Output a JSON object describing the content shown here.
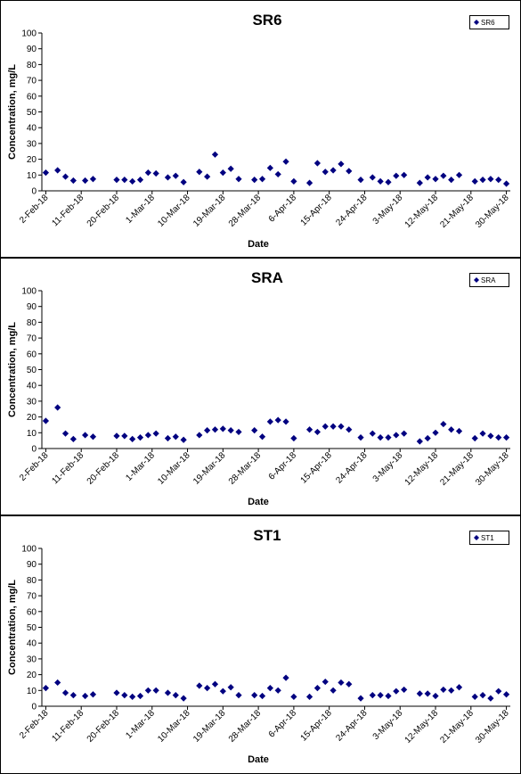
{
  "chart_data": [
    {
      "type": "scatter",
      "title": "SR6",
      "xlabel": "Date",
      "ylabel": "Concentration, mg/L",
      "x": [
        "2018-02-02",
        "2018-02-05",
        "2018-02-07",
        "2018-02-09",
        "2018-02-12",
        "2018-02-14",
        "2018-02-20",
        "2018-02-22",
        "2018-02-24",
        "2018-02-26",
        "2018-02-28",
        "2018-03-02",
        "2018-03-05",
        "2018-03-07",
        "2018-03-09",
        "2018-03-13",
        "2018-03-15",
        "2018-03-17",
        "2018-03-19",
        "2018-03-21",
        "2018-03-23",
        "2018-03-27",
        "2018-03-29",
        "2018-03-31",
        "2018-04-02",
        "2018-04-04",
        "2018-04-06",
        "2018-04-10",
        "2018-04-12",
        "2018-04-14",
        "2018-04-16",
        "2018-04-18",
        "2018-04-20",
        "2018-04-23",
        "2018-04-26",
        "2018-04-28",
        "2018-04-30",
        "2018-05-02",
        "2018-05-04",
        "2018-05-08",
        "2018-05-10",
        "2018-05-12",
        "2018-05-14",
        "2018-05-16",
        "2018-05-18",
        "2018-05-22",
        "2018-05-24",
        "2018-05-26",
        "2018-05-28",
        "2018-05-30"
      ],
      "series": [
        {
          "name": "SR6",
          "color": "#000080",
          "values": [
            11.5,
            13,
            9,
            6.5,
            6.5,
            7.5,
            7,
            7,
            6,
            7,
            11.5,
            11,
            8.5,
            9.5,
            5.5,
            12,
            9,
            23,
            11.5,
            14,
            7.5,
            7,
            7.5,
            14.5,
            10.5,
            18.5,
            6,
            5,
            17.5,
            12,
            13,
            17,
            12.5,
            7,
            8.5,
            6,
            5.5,
            9.5,
            10,
            5,
            8.5,
            7.5,
            9.5,
            7,
            10,
            6,
            7,
            7.5,
            7,
            4.5
          ]
        }
      ],
      "xlim": [
        "2018-02-01",
        "2018-05-31"
      ],
      "xticks": [
        {
          "value": "2018-02-02",
          "label": "2-Feb-18"
        },
        {
          "value": "2018-02-11",
          "label": "11-Feb-18"
        },
        {
          "value": "2018-02-20",
          "label": "20-Feb-18"
        },
        {
          "value": "2018-03-01",
          "label": "1-Mar-18"
        },
        {
          "value": "2018-03-10",
          "label": "10-Mar-18"
        },
        {
          "value": "2018-03-19",
          "label": "19-Mar-18"
        },
        {
          "value": "2018-03-28",
          "label": "28-Mar-18"
        },
        {
          "value": "2018-04-06",
          "label": "6-Apr-18"
        },
        {
          "value": "2018-04-15",
          "label": "15-Apr-18"
        },
        {
          "value": "2018-04-24",
          "label": "24-Apr-18"
        },
        {
          "value": "2018-05-03",
          "label": "3-May-18"
        },
        {
          "value": "2018-05-12",
          "label": "12-May-18"
        },
        {
          "value": "2018-05-21",
          "label": "21-May-18"
        },
        {
          "value": "2018-05-30",
          "label": "30-May-18"
        }
      ],
      "ylim": [
        0,
        100
      ],
      "yticks": [
        0,
        10,
        20,
        30,
        40,
        50,
        60,
        70,
        80,
        90,
        100
      ],
      "legend": "upper right"
    },
    {
      "type": "scatter",
      "title": "SRA",
      "xlabel": "Date",
      "ylabel": "Concentration, mg/L",
      "x": [
        "2018-02-02",
        "2018-02-05",
        "2018-02-07",
        "2018-02-09",
        "2018-02-12",
        "2018-02-14",
        "2018-02-20",
        "2018-02-22",
        "2018-02-24",
        "2018-02-26",
        "2018-02-28",
        "2018-03-02",
        "2018-03-05",
        "2018-03-07",
        "2018-03-09",
        "2018-03-13",
        "2018-03-15",
        "2018-03-17",
        "2018-03-19",
        "2018-03-21",
        "2018-03-23",
        "2018-03-27",
        "2018-03-29",
        "2018-03-31",
        "2018-04-02",
        "2018-04-04",
        "2018-04-06",
        "2018-04-10",
        "2018-04-12",
        "2018-04-14",
        "2018-04-16",
        "2018-04-18",
        "2018-04-20",
        "2018-04-23",
        "2018-04-26",
        "2018-04-28",
        "2018-04-30",
        "2018-05-02",
        "2018-05-04",
        "2018-05-08",
        "2018-05-10",
        "2018-05-12",
        "2018-05-14",
        "2018-05-16",
        "2018-05-18",
        "2018-05-22",
        "2018-05-24",
        "2018-05-26",
        "2018-05-28",
        "2018-05-30"
      ],
      "series": [
        {
          "name": "SRA",
          "color": "#000080",
          "values": [
            17.5,
            26,
            9.5,
            6,
            8.5,
            7.5,
            8,
            8,
            6,
            7,
            8.5,
            9.5,
            6.5,
            7.5,
            5.5,
            8.5,
            11.5,
            12,
            12.5,
            11.5,
            10.5,
            11.5,
            7.5,
            17,
            18,
            17,
            6.5,
            12,
            10.5,
            14,
            14,
            14,
            12,
            7,
            9.5,
            7,
            7,
            8.5,
            9.5,
            4.5,
            6.5,
            10,
            15.5,
            12,
            11,
            6.5,
            9.5,
            8,
            7,
            7
          ]
        }
      ],
      "xlim": [
        "2018-02-01",
        "2018-05-31"
      ],
      "xticks": [
        {
          "value": "2018-02-02",
          "label": "2-Feb-18"
        },
        {
          "value": "2018-02-11",
          "label": "11-Feb-18"
        },
        {
          "value": "2018-02-20",
          "label": "20-Feb-18"
        },
        {
          "value": "2018-03-01",
          "label": "1-Mar-18"
        },
        {
          "value": "2018-03-10",
          "label": "10-Mar-18"
        },
        {
          "value": "2018-03-19",
          "label": "19-Mar-18"
        },
        {
          "value": "2018-03-28",
          "label": "28-Mar-18"
        },
        {
          "value": "2018-04-06",
          "label": "6-Apr-18"
        },
        {
          "value": "2018-04-15",
          "label": "15-Apr-18"
        },
        {
          "value": "2018-04-24",
          "label": "24-Apr-18"
        },
        {
          "value": "2018-05-03",
          "label": "3-May-18"
        },
        {
          "value": "2018-05-12",
          "label": "12-May-18"
        },
        {
          "value": "2018-05-21",
          "label": "21-May-18"
        },
        {
          "value": "2018-05-30",
          "label": "30-May-18"
        }
      ],
      "ylim": [
        0,
        100
      ],
      "yticks": [
        0,
        10,
        20,
        30,
        40,
        50,
        60,
        70,
        80,
        90,
        100
      ],
      "legend": "upper right"
    },
    {
      "type": "scatter",
      "title": "ST1",
      "xlabel": "Date",
      "ylabel": "Concentration, mg/L",
      "x": [
        "2018-02-02",
        "2018-02-05",
        "2018-02-07",
        "2018-02-09",
        "2018-02-12",
        "2018-02-14",
        "2018-02-20",
        "2018-02-22",
        "2018-02-24",
        "2018-02-26",
        "2018-02-28",
        "2018-03-02",
        "2018-03-05",
        "2018-03-07",
        "2018-03-09",
        "2018-03-13",
        "2018-03-15",
        "2018-03-17",
        "2018-03-19",
        "2018-03-21",
        "2018-03-23",
        "2018-03-27",
        "2018-03-29",
        "2018-03-31",
        "2018-04-02",
        "2018-04-04",
        "2018-04-06",
        "2018-04-10",
        "2018-04-12",
        "2018-04-14",
        "2018-04-16",
        "2018-04-18",
        "2018-04-20",
        "2018-04-23",
        "2018-04-26",
        "2018-04-28",
        "2018-04-30",
        "2018-05-02",
        "2018-05-04",
        "2018-05-08",
        "2018-05-10",
        "2018-05-12",
        "2018-05-14",
        "2018-05-16",
        "2018-05-18",
        "2018-05-22",
        "2018-05-24",
        "2018-05-26",
        "2018-05-28",
        "2018-05-30"
      ],
      "series": [
        {
          "name": "ST1",
          "color": "#000080",
          "values": [
            11.5,
            15,
            8.5,
            7,
            6.5,
            7.5,
            8.5,
            7,
            6,
            6.5,
            10,
            10,
            8.5,
            7,
            5,
            13,
            11.5,
            14,
            9.5,
            12,
            7,
            7,
            6.5,
            11.5,
            10,
            18,
            6,
            6,
            11.5,
            15.5,
            10,
            15,
            14,
            5,
            7,
            7,
            6.5,
            9.5,
            10.5,
            8,
            8,
            6.5,
            10.5,
            10,
            12,
            6,
            7,
            5,
            9.5,
            7.5
          ]
        }
      ],
      "xlim": [
        "2018-02-01",
        "2018-05-31"
      ],
      "xticks": [
        {
          "value": "2018-02-02",
          "label": "2-Feb-18"
        },
        {
          "value": "2018-02-11",
          "label": "11-Feb-18"
        },
        {
          "value": "2018-02-20",
          "label": "20-Feb-18"
        },
        {
          "value": "2018-03-01",
          "label": "1-Mar-18"
        },
        {
          "value": "2018-03-10",
          "label": "10-Mar-18"
        },
        {
          "value": "2018-03-19",
          "label": "19-Mar-18"
        },
        {
          "value": "2018-03-28",
          "label": "28-Mar-18"
        },
        {
          "value": "2018-04-06",
          "label": "6-Apr-18"
        },
        {
          "value": "2018-04-15",
          "label": "15-Apr-18"
        },
        {
          "value": "2018-04-24",
          "label": "24-Apr-18"
        },
        {
          "value": "2018-05-03",
          "label": "3-May-18"
        },
        {
          "value": "2018-05-12",
          "label": "12-May-18"
        },
        {
          "value": "2018-05-21",
          "label": "21-May-18"
        },
        {
          "value": "2018-05-30",
          "label": "30-May-18"
        }
      ],
      "ylim": [
        0,
        100
      ],
      "yticks": [
        0,
        10,
        20,
        30,
        40,
        50,
        60,
        70,
        80,
        90,
        100
      ],
      "legend": "upper right"
    }
  ]
}
